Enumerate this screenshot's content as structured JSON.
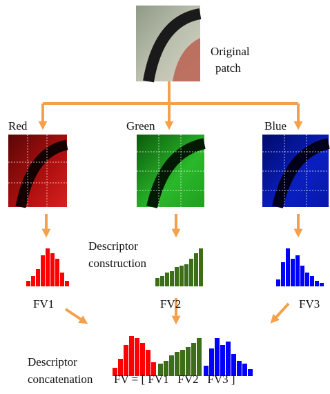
{
  "original_patch": {
    "label_lines": [
      "Original",
      "patch"
    ]
  },
  "channels": [
    {
      "label": "Red",
      "fv": "FV1"
    },
    {
      "label": "Green",
      "fv": "FV2"
    },
    {
      "label": "Blue",
      "fv": "FV3"
    }
  ],
  "construction": {
    "label_lines": [
      "Descriptor",
      "construction"
    ]
  },
  "concatenation": {
    "label_lines": [
      "Descriptor",
      "concatenation"
    ],
    "formula": "FV = [ FV1   FV2   FV3 ]"
  }
}
